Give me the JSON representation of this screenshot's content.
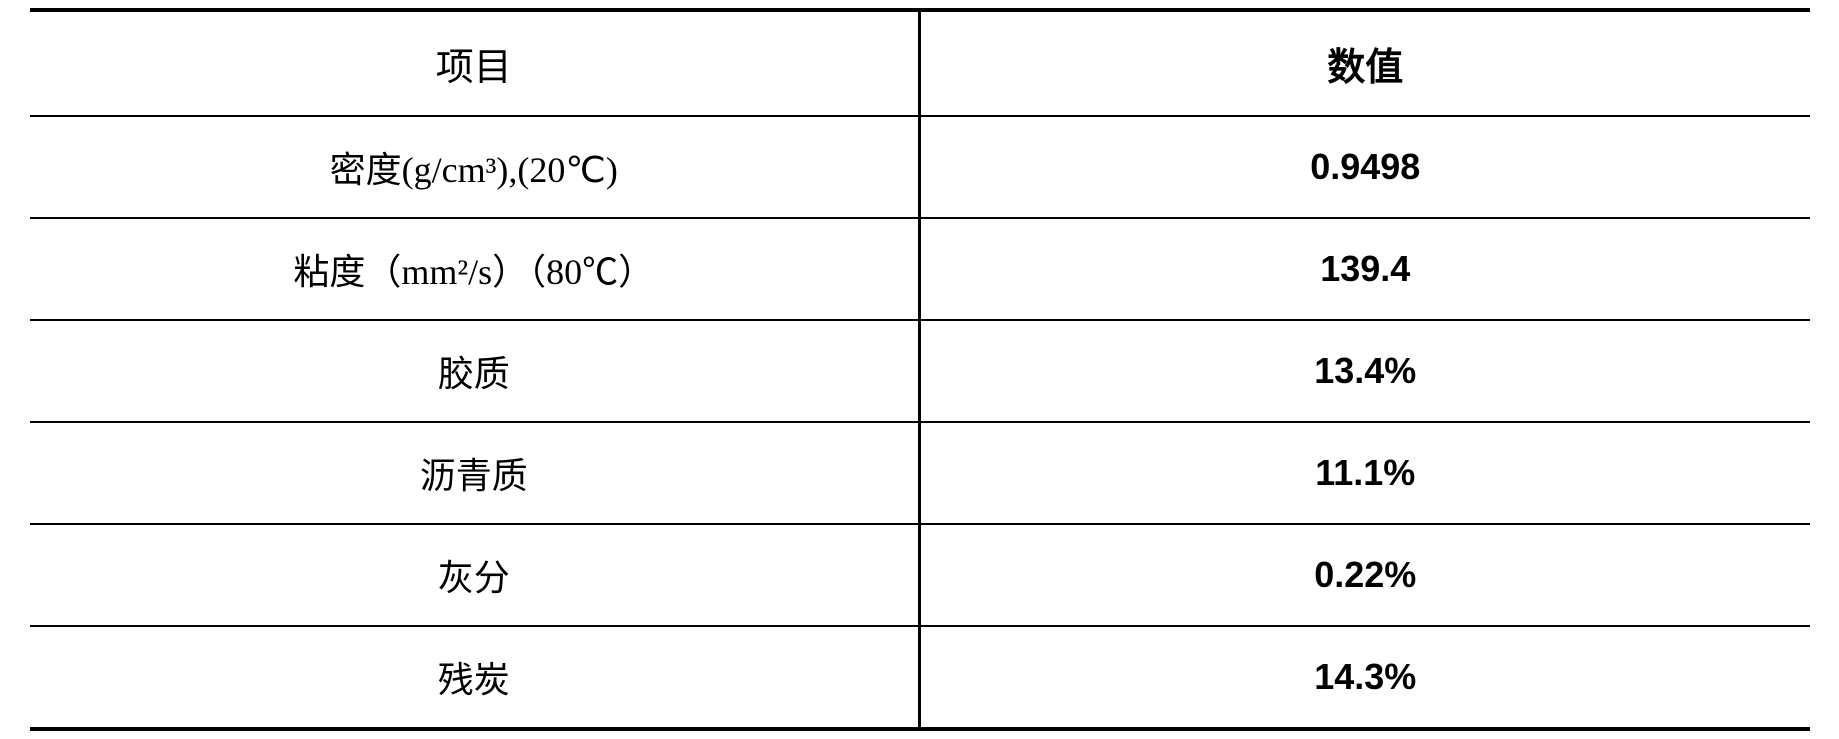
{
  "table": {
    "columns": [
      "项目",
      "数值"
    ],
    "rows": [
      {
        "label": "密度(g/cm³),(20℃)",
        "value": "0.9498"
      },
      {
        "label": "粘度（mm²/s）（80℃）",
        "value": "139.4"
      },
      {
        "label": "胶质",
        "value": "13.4%"
      },
      {
        "label": "沥青质",
        "value": "11.1%"
      },
      {
        "label": "灰分",
        "value": "0.22%"
      },
      {
        "label": "残炭",
        "value": "14.3%"
      }
    ],
    "border_color": "#000000",
    "background_color": "#ffffff",
    "text_color": "#000000",
    "header_fontsize": 38,
    "body_fontsize": 36,
    "top_bottom_border_width": 4,
    "row_border_width": 2,
    "center_border_width": 3,
    "col_widths": [
      "50%",
      "50%"
    ]
  }
}
